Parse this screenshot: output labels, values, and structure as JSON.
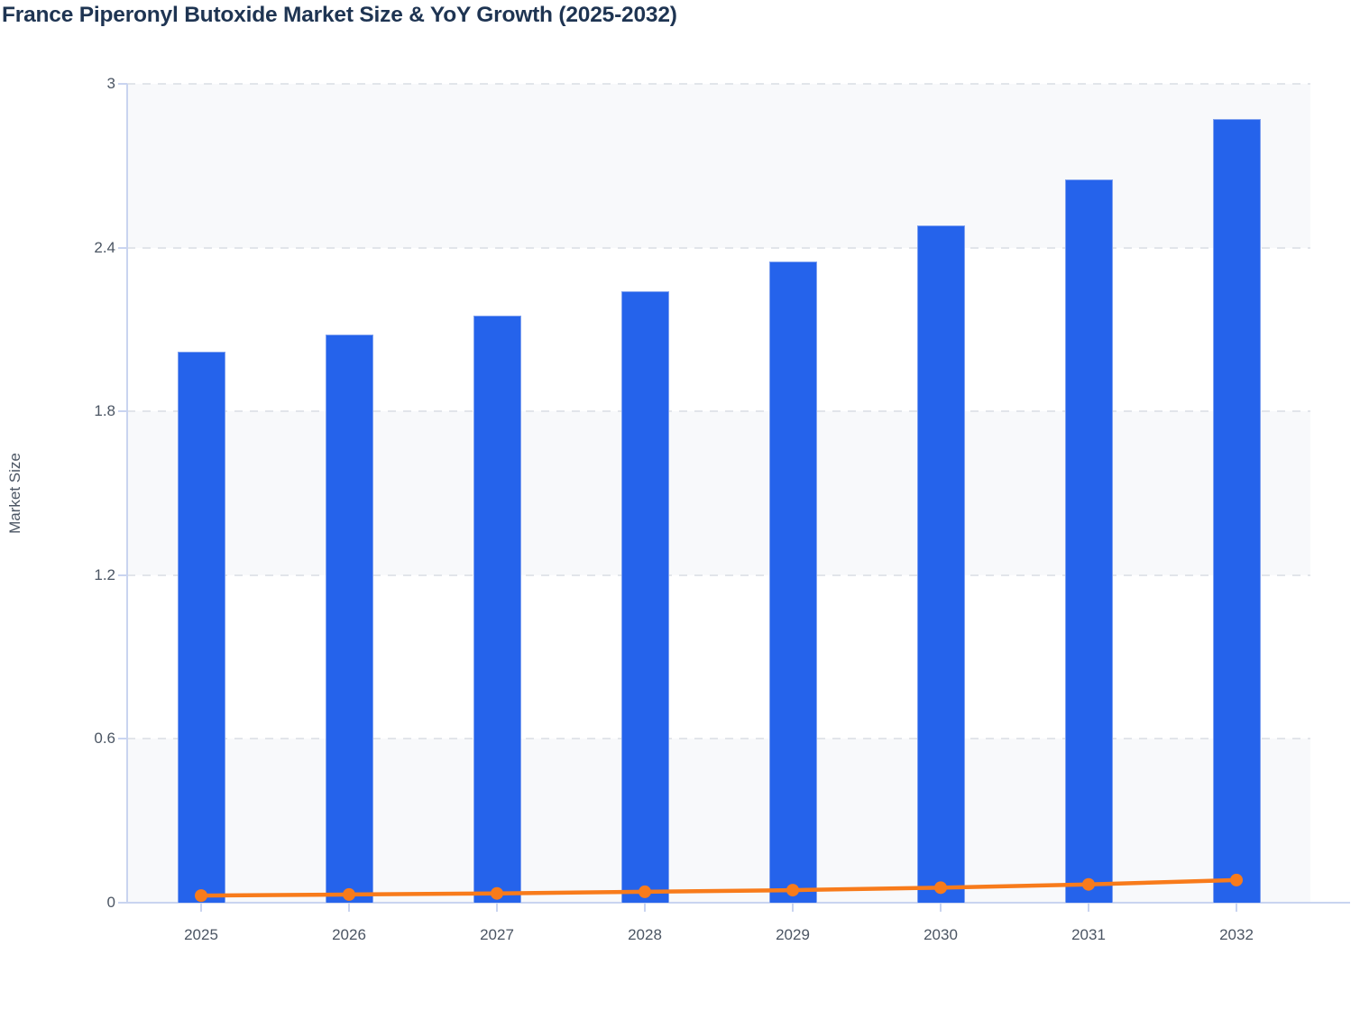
{
  "chart_data": {
    "type": "bar",
    "combo": "bar-with-line-overlay",
    "title": "France Piperonyl Butoxide Market Size & YoY Growth (2025-2032)",
    "xlabel": "",
    "ylabel": "Market Size",
    "categories": [
      "2025",
      "2026",
      "2027",
      "2028",
      "2029",
      "2030",
      "2031",
      "2032"
    ],
    "series": [
      {
        "name": "Market Size",
        "type": "bar",
        "color": "#2563EB",
        "values": [
          2.02,
          2.08,
          2.15,
          2.24,
          2.35,
          2.48,
          2.65,
          2.87
        ]
      },
      {
        "name": "YoY Growth",
        "type": "line",
        "color": "#F87B1B",
        "values": [
          0.026,
          0.03,
          0.034,
          0.04,
          0.046,
          0.055,
          0.067,
          0.083
        ]
      }
    ],
    "ylim": [
      0,
      3
    ],
    "yticks": [
      3,
      2.4,
      1.8,
      1.2,
      0.6,
      0
    ],
    "ytick_labels": [
      "3",
      "2.4",
      "1.8",
      "1.2",
      "0.6",
      "0"
    ],
    "grid": "horizontal-dashed",
    "plot_bands": "alternating horizontal bands between gridlines, light gray then white, starting at top",
    "legend": "none"
  },
  "colors": {
    "bar": "#2563EB",
    "bar_border": "#7EA0EF",
    "line": "#F87B1B",
    "title_text": "#1E3452",
    "tick_text": "#4B5563",
    "axis_line": "#C9D4F0",
    "gridline": "#E2E5EA",
    "band": "#F8F9FB",
    "background": "#FFFFFF"
  }
}
